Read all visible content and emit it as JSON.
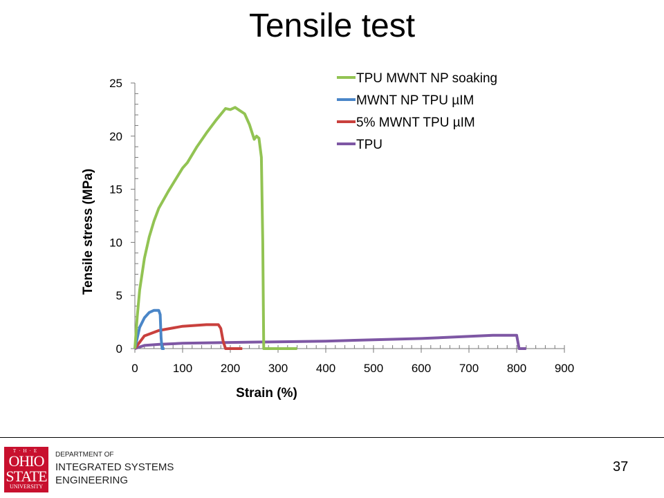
{
  "slide": {
    "title": "Tensile test",
    "page_number": "37"
  },
  "footer": {
    "logo_text": "THE OHIO STATE UNIVERSITY",
    "dept_line1": "DEPARTMENT OF",
    "dept_line2": "INTEGRATED SYSTEMS",
    "dept_line3": "ENGINEERING"
  },
  "chart_data": {
    "type": "line",
    "title": "",
    "xlabel": "Strain (%)",
    "ylabel": "Tensile stress (MPa)",
    "xlim": [
      0,
      900
    ],
    "ylim": [
      0,
      25
    ],
    "xticks": [
      0,
      100,
      200,
      300,
      400,
      500,
      600,
      700,
      800,
      900
    ],
    "yticks": [
      0,
      5,
      10,
      15,
      20,
      25
    ],
    "legend_position": "top-right",
    "series": [
      {
        "name": "TPU MWNT NP soaking",
        "color": "#92c353",
        "x": [
          0,
          5,
          10,
          20,
          30,
          40,
          50,
          70,
          100,
          110,
          130,
          150,
          170,
          190,
          200,
          210,
          220,
          230,
          240,
          250,
          255,
          260,
          265,
          268,
          270,
          340
        ],
        "y": [
          0,
          3,
          5.5,
          8.5,
          10.5,
          12,
          13.2,
          14.8,
          17,
          17.5,
          19,
          20.3,
          21.5,
          22.6,
          22.5,
          22.7,
          22.4,
          22.1,
          21.1,
          19.7,
          20,
          19.8,
          18,
          10,
          0,
          0
        ]
      },
      {
        "name": "MWNT NP TPU µIM",
        "color": "#4a86c8",
        "x": [
          0,
          10,
          20,
          30,
          40,
          50,
          53,
          55,
          57,
          62
        ],
        "y": [
          0,
          2,
          2.9,
          3.4,
          3.6,
          3.6,
          3.2,
          1,
          0,
          0
        ]
      },
      {
        "name": "5% MWNT TPU µIM",
        "color": "#c9403d",
        "x": [
          0,
          20,
          50,
          100,
          150,
          175,
          180,
          185,
          190,
          225
        ],
        "y": [
          0,
          1.2,
          1.7,
          2.1,
          2.25,
          2.25,
          1.9,
          0.7,
          0,
          0
        ]
      },
      {
        "name": "TPU",
        "color": "#7e57a4",
        "x": [
          0,
          20,
          50,
          100,
          200,
          400,
          600,
          750,
          800,
          805,
          820
        ],
        "y": [
          0,
          0.3,
          0.4,
          0.5,
          0.58,
          0.7,
          0.95,
          1.25,
          1.25,
          0,
          0
        ]
      }
    ]
  }
}
